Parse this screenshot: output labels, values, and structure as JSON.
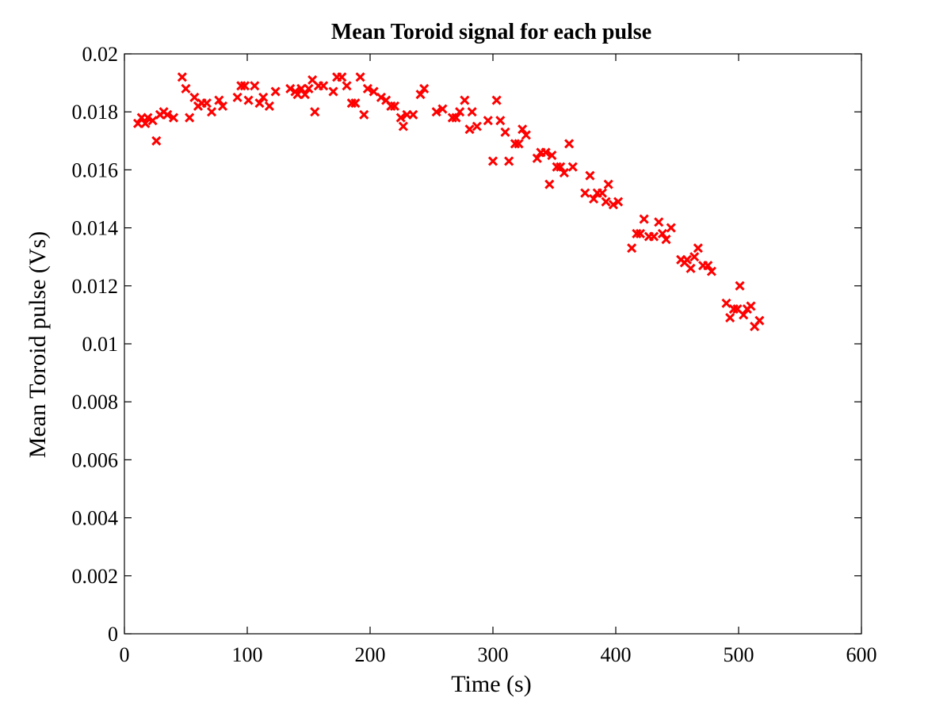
{
  "chart_data": {
    "type": "scatter",
    "title": "Mean Toroid signal for each pulse",
    "xlabel": "Time (s)",
    "ylabel": "Mean Toroid pulse (Vs)",
    "xlim": [
      0,
      600
    ],
    "ylim": [
      0,
      0.02
    ],
    "xticks": [
      0,
      100,
      200,
      300,
      400,
      500,
      600
    ],
    "xtick_labels": [
      "0",
      "100",
      "200",
      "300",
      "400",
      "500",
      "600"
    ],
    "yticks": [
      0,
      0.002,
      0.004,
      0.006,
      0.008,
      0.01,
      0.012,
      0.014,
      0.016,
      0.018,
      0.02
    ],
    "ytick_labels": [
      "0",
      "0.002",
      "0.004",
      "0.006",
      "0.008",
      "0.01",
      "0.012",
      "0.014",
      "0.016",
      "0.018",
      "0.02"
    ],
    "grid": false,
    "marker": "x",
    "color": "#ff0000",
    "series": [
      {
        "x": [
          11,
          14,
          17,
          19,
          23,
          26,
          29,
          32,
          35,
          40,
          47,
          50,
          53,
          57,
          60,
          63,
          67,
          71,
          77,
          80,
          92,
          95,
          98,
          101,
          106,
          110,
          113,
          118,
          123,
          135,
          139,
          141,
          144,
          147,
          150,
          153,
          155,
          158,
          162,
          170,
          173,
          177,
          181,
          185,
          188,
          192,
          195,
          198,
          203,
          209,
          213,
          217,
          220,
          225,
          227,
          230,
          235,
          241,
          244,
          254,
          259,
          267,
          270,
          273,
          277,
          281,
          283,
          287,
          296,
          300,
          303,
          306,
          310,
          313,
          318,
          321,
          324,
          327,
          336,
          339,
          343,
          346,
          348,
          352,
          355,
          358,
          362,
          365,
          375,
          379,
          382,
          385,
          389,
          392,
          394,
          398,
          402,
          413,
          417,
          420,
          423,
          427,
          431,
          435,
          438,
          441,
          445,
          453,
          456,
          458,
          461,
          464,
          467,
          471,
          475,
          478,
          490,
          493,
          496,
          499,
          501,
          504,
          507,
          510,
          513,
          517
        ],
        "y": [
          0.0176,
          0.0178,
          0.0176,
          0.0178,
          0.0177,
          0.017,
          0.0179,
          0.018,
          0.0179,
          0.0178,
          0.0192,
          0.0188,
          0.0178,
          0.0185,
          0.0182,
          0.0183,
          0.0183,
          0.018,
          0.0184,
          0.0182,
          0.0185,
          0.0189,
          0.0189,
          0.0184,
          0.0189,
          0.0183,
          0.0185,
          0.0182,
          0.0187,
          0.0188,
          0.0187,
          0.0186,
          0.0188,
          0.0186,
          0.0188,
          0.0191,
          0.018,
          0.0189,
          0.0189,
          0.0187,
          0.0192,
          0.0192,
          0.0189,
          0.0183,
          0.0183,
          0.0192,
          0.0179,
          0.0188,
          0.0187,
          0.0185,
          0.0184,
          0.0182,
          0.0182,
          0.0178,
          0.0175,
          0.0179,
          0.0179,
          0.0186,
          0.0188,
          0.018,
          0.0181,
          0.0178,
          0.0178,
          0.018,
          0.0184,
          0.0174,
          0.018,
          0.0175,
          0.0177,
          0.0163,
          0.0184,
          0.0177,
          0.0173,
          0.0163,
          0.0169,
          0.0169,
          0.0174,
          0.0172,
          0.0164,
          0.0166,
          0.0166,
          0.0155,
          0.0165,
          0.0161,
          0.0161,
          0.0159,
          0.0169,
          0.0161,
          0.0152,
          0.0158,
          0.015,
          0.0152,
          0.0152,
          0.0149,
          0.0155,
          0.0148,
          0.0149,
          0.0133,
          0.0138,
          0.0138,
          0.0143,
          0.0137,
          0.0137,
          0.0142,
          0.0138,
          0.0136,
          0.014,
          0.0129,
          0.0128,
          0.0129,
          0.0126,
          0.013,
          0.0133,
          0.0127,
          0.0127,
          0.0125,
          0.0114,
          0.0109,
          0.0112,
          0.0112,
          0.012,
          0.011,
          0.0112,
          0.0113,
          0.0106,
          0.0108
        ]
      }
    ]
  }
}
